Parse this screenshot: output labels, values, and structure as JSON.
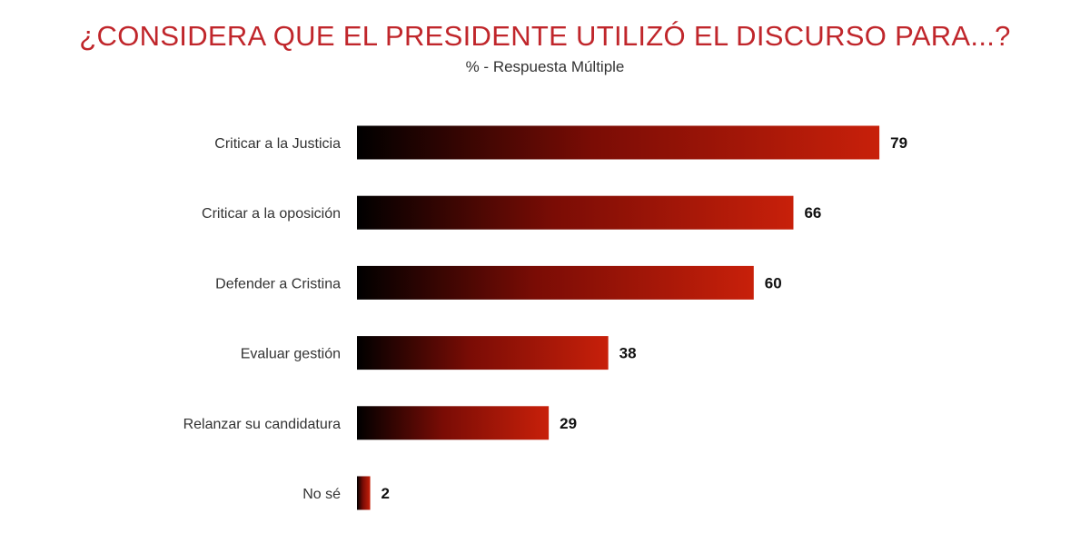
{
  "chart_data": {
    "type": "bar",
    "orientation": "horizontal",
    "title": "¿CONSIDERA QUE EL PRESIDENTE UTILIZÓ EL DISCURSO PARA...?",
    "subtitle": "% - Respuesta Múltiple",
    "categories": [
      "Criticar a la Justicia",
      "Criticar a la oposición",
      "Defender a Cristina",
      "Evaluar gestión",
      "Relanzar su candidatura",
      "No sé"
    ],
    "values": [
      79,
      66,
      60,
      38,
      29,
      2
    ],
    "data_labels": [
      "79",
      "66",
      "60",
      "38",
      "29",
      "2"
    ],
    "xlim": [
      0,
      100
    ],
    "grid": false,
    "colors": {
      "gradient_start": "#000000",
      "gradient_end": "#c8200a",
      "title": "#c0262b"
    }
  }
}
